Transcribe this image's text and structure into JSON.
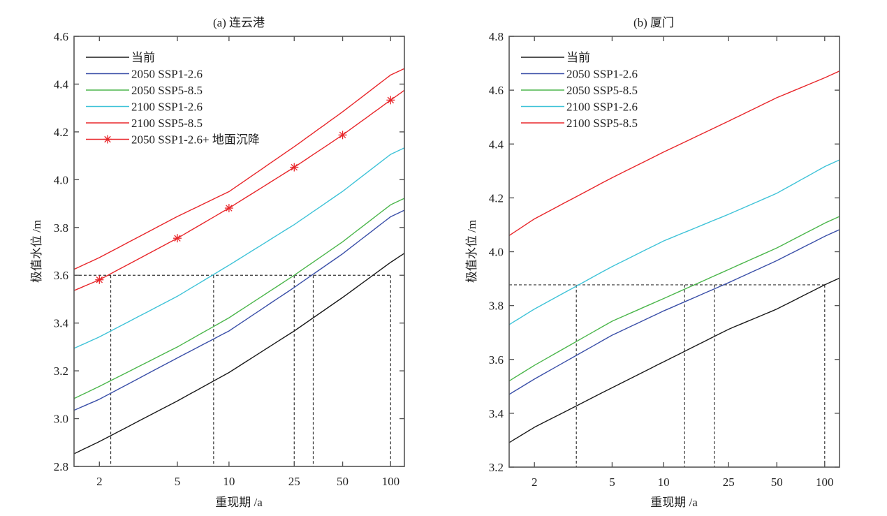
{
  "chart_data": [
    {
      "type": "line",
      "title": "(a) 连云港",
      "xlabel": "重现期 /a",
      "ylabel": "极值水位 /m",
      "x_scale": "gumbel",
      "xlim": [
        1.58,
        122
      ],
      "ylim": [
        2.8,
        4.6
      ],
      "xticks": [
        2,
        5,
        10,
        25,
        50,
        100
      ],
      "xtick_labels": [
        "2",
        "5",
        "10",
        "25",
        "50",
        "100"
      ],
      "yticks": [
        2.8,
        3.0,
        3.2,
        3.4,
        3.6,
        3.8,
        4.0,
        4.2,
        4.4,
        4.6
      ],
      "ytick_labels": [
        "2.8",
        "3.0",
        "3.2",
        "3.4",
        "3.6",
        "3.8",
        "4.0",
        "4.2",
        "4.4",
        "4.6"
      ],
      "grid": false,
      "legend_position": "top-left",
      "x": [
        1.58,
        2,
        5,
        10,
        25,
        50,
        100,
        122
      ],
      "series": [
        {
          "name": "当前",
          "color": "#1a1a1a",
          "values": [
            2.853,
            2.904,
            3.074,
            3.193,
            3.367,
            3.507,
            3.654,
            3.692
          ]
        },
        {
          "name": "2050 SSP1-2.6",
          "color": "#3a4fa8",
          "values": [
            3.035,
            3.081,
            3.254,
            3.367,
            3.549,
            3.69,
            3.845,
            3.872
          ]
        },
        {
          "name": "2050 SSP5-8.5",
          "color": "#4bb64b",
          "values": [
            3.084,
            3.135,
            3.3,
            3.422,
            3.6,
            3.74,
            3.895,
            3.922
          ]
        },
        {
          "name": "2100 SSP1-2.6",
          "color": "#3fc3d8",
          "values": [
            3.294,
            3.342,
            3.512,
            3.642,
            3.812,
            3.951,
            4.106,
            4.133
          ]
        },
        {
          "name": "2100 SSP5-8.5",
          "color": "#e8262a",
          "values": [
            3.625,
            3.674,
            3.846,
            3.95,
            4.138,
            4.284,
            4.438,
            4.465
          ]
        },
        {
          "name": "2050 SSP1-2.6+ 地面沉降",
          "color": "#e8262a",
          "marker": "asterisk",
          "values": [
            3.536,
            3.581,
            3.755,
            3.881,
            4.052,
            4.187,
            4.333,
            4.374
          ]
        }
      ],
      "reference_lines": {
        "horizontal": 3.6,
        "vertical_return_periods": [
          2.25,
          8.1,
          25,
          32.8,
          100
        ]
      }
    },
    {
      "type": "line",
      "title": "(b) 厦门",
      "xlabel": "重现期 /a",
      "ylabel": "极值水位 /m",
      "x_scale": "gumbel",
      "xlim": [
        1.58,
        124
      ],
      "ylim": [
        3.2,
        4.8
      ],
      "xticks": [
        2,
        5,
        10,
        25,
        50,
        100
      ],
      "xtick_labels": [
        "2",
        "5",
        "10",
        "25",
        "50",
        "100"
      ],
      "yticks": [
        3.2,
        3.4,
        3.6,
        3.8,
        4.0,
        4.2,
        4.4,
        4.6,
        4.8
      ],
      "ytick_labels": [
        "3.2",
        "3.4",
        "3.6",
        "3.8",
        "4.0",
        "4.2",
        "4.4",
        "4.6",
        "4.8"
      ],
      "grid": false,
      "legend_position": "top-left",
      "x": [
        1.58,
        2,
        5,
        10,
        25,
        50,
        100,
        124
      ],
      "series": [
        {
          "name": "当前",
          "color": "#1a1a1a",
          "values": [
            3.291,
            3.348,
            3.495,
            3.591,
            3.712,
            3.787,
            3.877,
            3.902
          ]
        },
        {
          "name": "2050 SSP1-2.6",
          "color": "#3a4fa8",
          "values": [
            3.47,
            3.527,
            3.69,
            3.78,
            3.885,
            3.967,
            4.057,
            4.082
          ]
        },
        {
          "name": "2050 SSP5-8.5",
          "color": "#4bb64b",
          "values": [
            3.52,
            3.578,
            3.742,
            3.826,
            3.934,
            4.014,
            4.106,
            4.131
          ]
        },
        {
          "name": "2100 SSP1-2.6",
          "color": "#3fc3d8",
          "values": [
            3.729,
            3.787,
            3.945,
            4.04,
            4.139,
            4.217,
            4.316,
            4.341
          ]
        },
        {
          "name": "2100 SSP5-8.5",
          "color": "#e8262a",
          "values": [
            4.06,
            4.122,
            4.275,
            4.37,
            4.485,
            4.572,
            4.646,
            4.671
          ]
        }
      ],
      "reference_lines": {
        "horizontal": 3.877,
        "vertical_return_periods": [
          3.19,
          13.4,
          20.4,
          100
        ]
      }
    }
  ]
}
